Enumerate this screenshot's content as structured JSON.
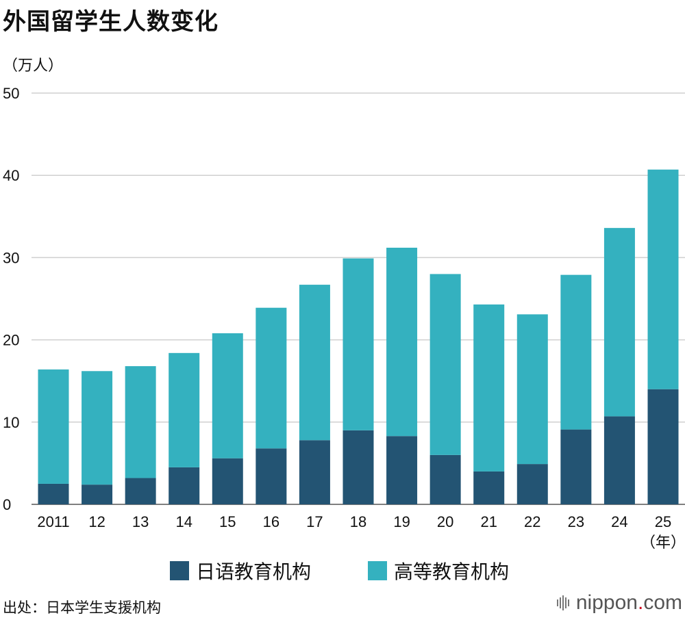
{
  "header": {
    "title": "外国留学生人数变化",
    "unit": "（万人）"
  },
  "chart_data": {
    "type": "bar",
    "stacked": true,
    "categories": [
      "2011",
      "12",
      "13",
      "14",
      "15",
      "16",
      "17",
      "18",
      "19",
      "20",
      "21",
      "22",
      "23",
      "24",
      "25"
    ],
    "category_suffix": "（年）",
    "series": [
      {
        "name": "日语教育机构",
        "color": "#235473",
        "values": [
          2.5,
          2.4,
          3.2,
          4.5,
          5.6,
          6.8,
          7.8,
          9.0,
          8.3,
          6.0,
          4.0,
          4.9,
          9.1,
          10.7,
          14.0
        ]
      },
      {
        "name": "高等教育机构",
        "color": "#34b1bf",
        "values": [
          13.9,
          13.8,
          13.6,
          13.9,
          15.2,
          17.1,
          18.9,
          20.9,
          22.9,
          22.0,
          20.3,
          18.2,
          18.8,
          22.9,
          26.7
        ]
      }
    ],
    "ylim": [
      0,
      50
    ],
    "yticks": [
      0,
      10,
      20,
      30,
      40,
      50
    ],
    "grid": true,
    "legend_position": "bottom"
  },
  "footer": {
    "source": "出处：日本学生支援机构",
    "logo_main": "nippon",
    "logo_dot": ".",
    "logo_tail": "com"
  }
}
